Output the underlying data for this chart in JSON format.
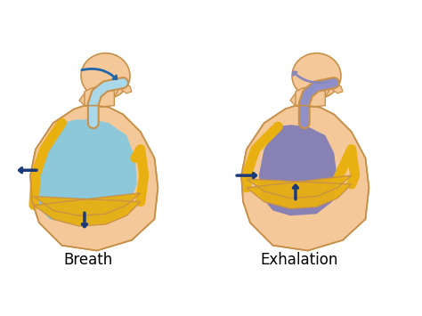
{
  "label_breath": "Breath",
  "label_exhalation": "Exhalation",
  "label_fontsize": 12,
  "bg_color": "#ffffff",
  "skin_color": "#F5C89A",
  "skin_outline": "#C8914A",
  "lung_color_inhale": "#7EC8E3",
  "lung_color_exhale": "#7878B8",
  "diaphragm_color": "#E8B010",
  "airway_color_inhale": "#A8D8EA",
  "airway_color_exhale": "#9090C8",
  "arrow_color": "#1A3A7A",
  "arrow_in_color": "#2266AA",
  "arrow_out_color": "#8888BB",
  "fig_width": 4.74,
  "fig_height": 3.55,
  "dpi": 100
}
